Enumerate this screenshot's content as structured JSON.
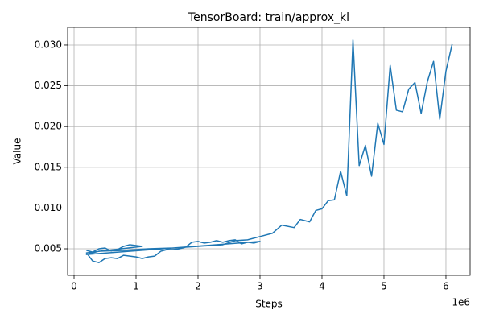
{
  "chart_data": {
    "type": "line",
    "title": "TensorBoard: train/approx_kl",
    "x_label": "Steps",
    "y_label": "Value",
    "x_offset_label": "1e6",
    "x": [
      200000,
      300000,
      400000,
      500000,
      600000,
      700000,
      800000,
      900000,
      1000000,
      1100000,
      200000,
      300000,
      400000,
      500000,
      600000,
      700000,
      800000,
      900000,
      1000000,
      1100000,
      1200000,
      1300000,
      1400000,
      1500000,
      1600000,
      1700000,
      1800000,
      1900000,
      2000000,
      2100000,
      2200000,
      2300000,
      2400000,
      2500000,
      2600000,
      2700000,
      2800000,
      2900000,
      3000000,
      200000,
      400000,
      800000,
      1200000,
      1600000,
      2000000,
      2400000,
      2600000,
      2800000,
      3000000,
      3200000,
      3350000,
      3550000,
      3650000,
      3800000,
      3900000,
      4000000,
      4100000,
      4200000,
      4300000,
      4400000,
      4500000,
      4600000,
      4700000,
      4800000,
      4900000,
      5000000,
      5100000,
      5200000,
      5300000,
      5400000,
      5500000,
      5600000,
      5700000,
      5800000,
      5900000,
      6000000,
      6100000
    ],
    "series": [
      {
        "color": "#1f77b4",
        "values": [
          0.0048,
          0.0046,
          0.005,
          0.0051,
          0.0047,
          0.0049,
          0.0053,
          0.0055,
          0.0054,
          0.0053,
          0.0045,
          0.0035,
          0.0033,
          0.0038,
          0.0039,
          0.0038,
          0.0042,
          0.0041,
          0.004,
          0.0038,
          0.004,
          0.0041,
          0.0047,
          0.0049,
          0.0049,
          0.005,
          0.0052,
          0.0058,
          0.0059,
          0.0057,
          0.0058,
          0.006,
          0.0058,
          0.006,
          0.0061,
          0.0056,
          0.0058,
          0.0057,
          0.0059,
          0.0043,
          0.0047,
          0.0048,
          0.005,
          0.0051,
          0.0053,
          0.0055,
          0.006,
          0.0061,
          0.0065,
          0.0069,
          0.0079,
          0.0076,
          0.0086,
          0.0083,
          0.0097,
          0.0099,
          0.0109,
          0.011,
          0.0145,
          0.0115,
          0.0306,
          0.0152,
          0.0177,
          0.0139,
          0.0204,
          0.0178,
          0.0275,
          0.022,
          0.0218,
          0.0246,
          0.0254,
          0.0216,
          0.0255,
          0.028,
          0.0209,
          0.0268,
          0.0301
        ]
      }
    ],
    "xlim": [
      -104000,
      6390000
    ],
    "xticks": [
      {
        "value": 0,
        "label": "0"
      },
      {
        "value": 1000000,
        "label": "1"
      },
      {
        "value": 2000000,
        "label": "2"
      },
      {
        "value": 3000000,
        "label": "3"
      },
      {
        "value": 4000000,
        "label": "4"
      },
      {
        "value": 5000000,
        "label": "5"
      },
      {
        "value": 6000000,
        "label": "6"
      }
    ],
    "ylim": [
      0.00174,
      0.03217
    ],
    "yticks": [
      0.005,
      {
        "value": 0.01,
        "label": "0.010"
      },
      0.015,
      {
        "value": 0.02,
        "label": "0.020"
      },
      0.025,
      {
        "value": 0.03,
        "label": "0.030"
      }
    ],
    "grid": true
  }
}
